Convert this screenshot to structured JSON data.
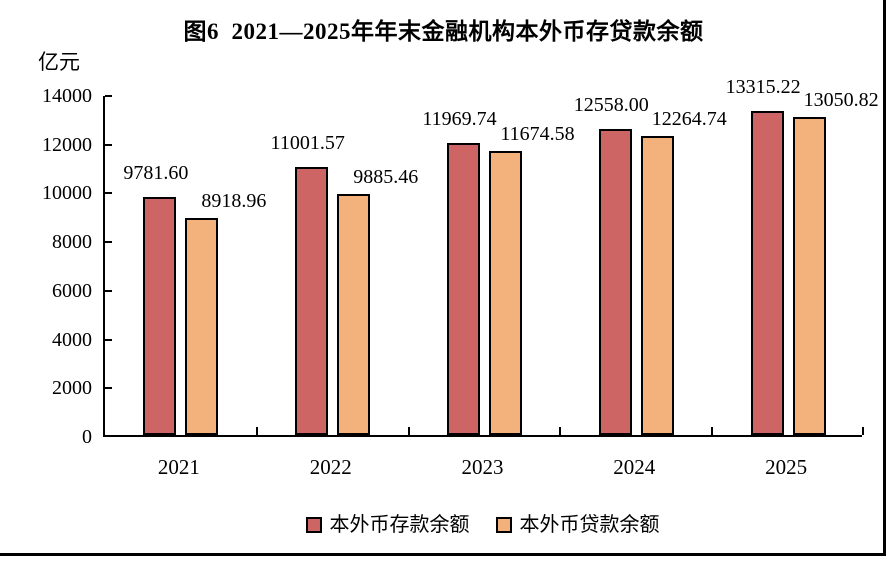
{
  "figure": {
    "title": "图6  2021—2025年年末金融机构本外币存贷款余额",
    "unit_label": "亿元"
  },
  "chart_data": {
    "type": "bar",
    "title": "图6 2021—2025年年末金融机构本外币存贷款余额",
    "xlabel": "",
    "ylabel": "亿元",
    "categories": [
      "2021",
      "2022",
      "2023",
      "2024",
      "2025"
    ],
    "series": [
      {
        "name": "本外币存款余额",
        "color": "#CE6565",
        "values": [
          9781.6,
          11001.57,
          11969.74,
          12558.0,
          13315.22
        ],
        "labels": [
          "9781.60",
          "11001.57",
          "11969.74",
          "12558.00",
          "13315.22"
        ]
      },
      {
        "name": "本外币贷款余额",
        "color": "#F3B17C",
        "values": [
          8918.96,
          9885.46,
          11674.58,
          12264.74,
          13050.82
        ],
        "labels": [
          "8918.96",
          "9885.46",
          "11674.58",
          "12264.74",
          "13050.82"
        ]
      }
    ],
    "ylim": [
      0,
      14000
    ],
    "yticks": [
      0,
      2000,
      4000,
      6000,
      8000,
      10000,
      12000,
      14000
    ],
    "grid": false,
    "legend_position": "bottom",
    "bar_border_color": "#000000",
    "axis_color": "#000000"
  }
}
